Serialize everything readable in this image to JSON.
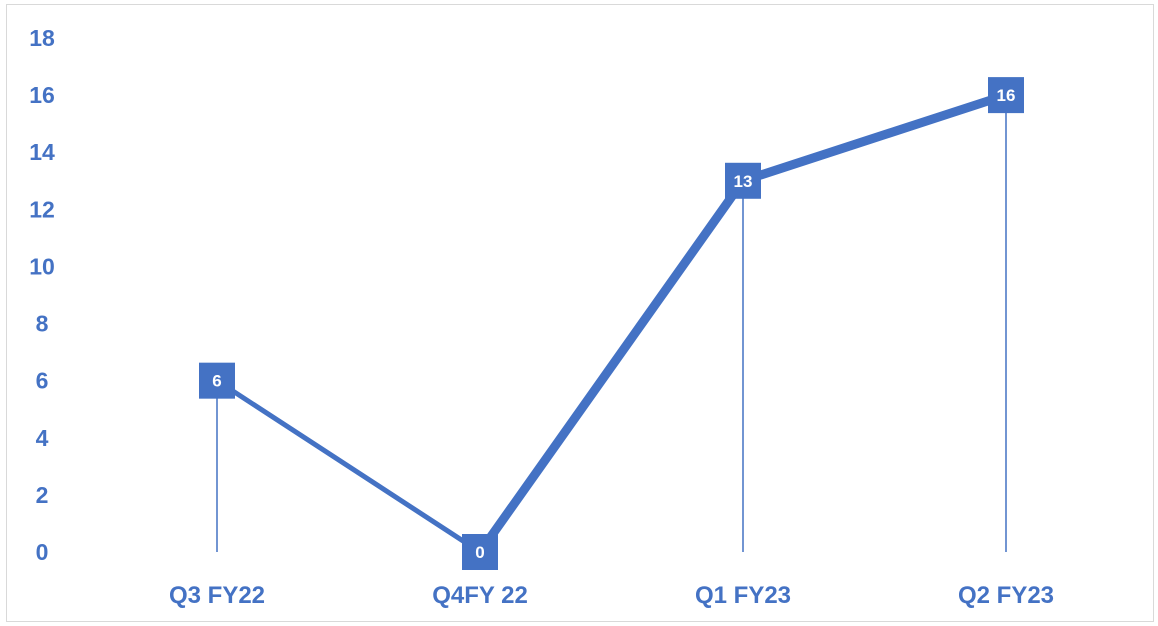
{
  "chart_data": {
    "type": "line",
    "categories": [
      "Q3 FY22",
      "Q4FY 22",
      "Q1 FY23",
      "Q2 FY23"
    ],
    "series": [
      {
        "values": [
          6,
          0,
          13,
          16
        ]
      }
    ],
    "data_labels": [
      "6",
      "0",
      "13",
      "16"
    ],
    "y_ticks": [
      "0",
      "2",
      "4",
      "6",
      "8",
      "10",
      "12",
      "14",
      "16",
      "18"
    ],
    "ylim": [
      0,
      18
    ],
    "title": "",
    "xlabel": "",
    "ylabel": "",
    "grid": false,
    "drop_lines": true,
    "colors": {
      "line": "#4472c4",
      "text": "#4472c4",
      "label_text": "#ffffff",
      "frame": "#d9d9d9"
    }
  }
}
